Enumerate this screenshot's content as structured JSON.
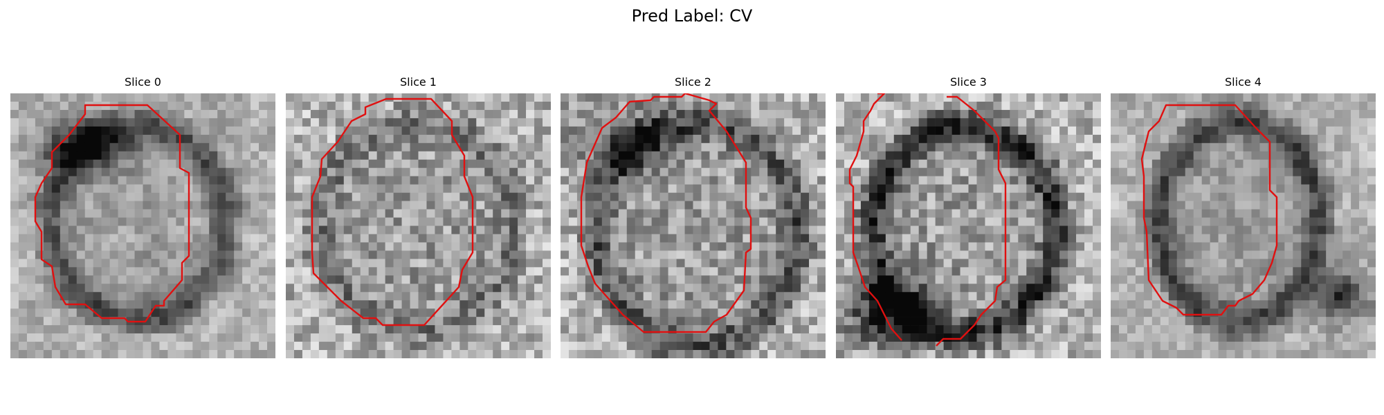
{
  "figure": {
    "title": "Pred Label: CV"
  },
  "panels": [
    {
      "title": "Slice 0"
    },
    {
      "title": "Slice 1"
    },
    {
      "title": "Slice 2"
    },
    {
      "title": "Slice 3"
    },
    {
      "title": "Slice 4"
    }
  ],
  "colors": {
    "contour": "#e01010",
    "background": "#ffffff"
  }
}
